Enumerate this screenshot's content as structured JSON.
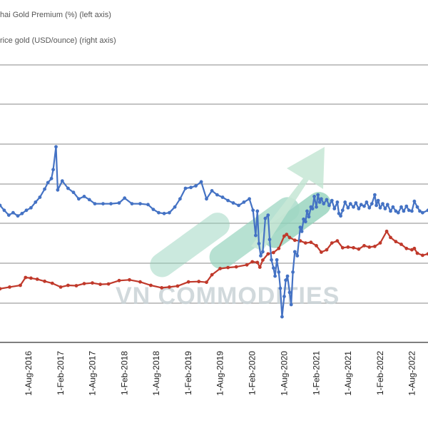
{
  "chart_data": {
    "type": "line",
    "title": "",
    "xlabel": "",
    "ylabel": "",
    "legend": [
      {
        "label": "hai Gold Premium (%) (left axis)",
        "color": "#4472c4",
        "marker": "line"
      },
      {
        "label": "rice gold (USD/ounce) (right axis)",
        "color": "#c0392b",
        "marker": "line"
      }
    ],
    "legend_position": "top-left",
    "grid": true,
    "x_ticks": [
      "1-Aug-2016",
      "1-Feb-2017",
      "1-Aug-2017",
      "1-Feb-2018",
      "1-Aug-2018",
      "1-Feb-2019",
      "1-Aug-2019",
      "1-Feb-2020",
      "1-Aug-2020",
      "1-Feb-2021",
      "1-Aug-2021",
      "1-Feb-2022",
      "1-Aug-2022"
    ],
    "x_range": [
      "2016-02-20",
      "2022-11-01"
    ],
    "series": [
      {
        "name": "hai Gold Premium (%) (left axis)",
        "color": "#4472c4",
        "axis": "left",
        "points": [
          [
            "2016-02-20",
            2.2
          ],
          [
            "2016-03-15",
            1.6
          ],
          [
            "2016-04-10",
            1.0
          ],
          [
            "2016-05-05",
            1.3
          ],
          [
            "2016-06-01",
            0.9
          ],
          [
            "2016-06-25",
            1.2
          ],
          [
            "2016-07-20",
            1.6
          ],
          [
            "2016-08-15",
            1.9
          ],
          [
            "2016-09-10",
            2.6
          ],
          [
            "2016-10-05",
            3.2
          ],
          [
            "2016-11-01",
            4.2
          ],
          [
            "2016-11-20",
            5.0
          ],
          [
            "2016-12-10",
            5.5
          ],
          [
            "2016-12-20",
            6.6
          ],
          [
            "2017-01-05",
            9.4
          ],
          [
            "2017-01-15",
            4.1
          ],
          [
            "2017-02-10",
            5.2
          ],
          [
            "2017-03-15",
            4.3
          ],
          [
            "2017-04-15",
            3.8
          ],
          [
            "2017-05-15",
            3.0
          ],
          [
            "2017-06-15",
            3.3
          ],
          [
            "2017-07-15",
            2.9
          ],
          [
            "2017-08-15",
            2.4
          ],
          [
            "2017-10-01",
            2.4
          ],
          [
            "2017-11-15",
            2.4
          ],
          [
            "2018-01-01",
            2.5
          ],
          [
            "2018-02-01",
            3.1
          ],
          [
            "2018-03-15",
            2.4
          ],
          [
            "2018-05-01",
            2.4
          ],
          [
            "2018-06-15",
            2.3
          ],
          [
            "2018-07-15",
            1.7
          ],
          [
            "2018-08-15",
            1.3
          ],
          [
            "2018-09-15",
            1.2
          ],
          [
            "2018-10-15",
            1.3
          ],
          [
            "2018-11-15",
            2.0
          ],
          [
            "2018-12-15",
            3.0
          ],
          [
            "2019-01-15",
            4.3
          ],
          [
            "2019-02-15",
            4.4
          ],
          [
            "2019-03-15",
            4.6
          ],
          [
            "2019-04-15",
            5.1
          ],
          [
            "2019-05-15",
            3.0
          ],
          [
            "2019-06-15",
            4.0
          ],
          [
            "2019-07-15",
            3.5
          ],
          [
            "2019-08-15",
            3.2
          ],
          [
            "2019-09-15",
            2.8
          ],
          [
            "2019-10-15",
            2.5
          ],
          [
            "2019-11-15",
            2.2
          ],
          [
            "2019-12-15",
            2.6
          ],
          [
            "2020-01-15",
            3.0
          ],
          [
            "2020-02-05",
            1.6
          ],
          [
            "2020-02-20",
            -1.5
          ],
          [
            "2020-03-01",
            1.5
          ],
          [
            "2020-03-10",
            -2.5
          ],
          [
            "2020-03-20",
            -4.0
          ],
          [
            "2020-04-01",
            -3.5
          ],
          [
            "2020-04-15",
            0.6
          ],
          [
            "2020-05-01",
            1.0
          ],
          [
            "2020-05-10",
            -2.0
          ],
          [
            "2020-05-20",
            -4.5
          ],
          [
            "2020-06-01",
            -5.5
          ],
          [
            "2020-06-10",
            -6.5
          ],
          [
            "2020-06-20",
            -4.5
          ],
          [
            "2020-07-01",
            -6.0
          ],
          [
            "2020-07-10",
            -8.0
          ],
          [
            "2020-07-20",
            -11.5
          ],
          [
            "2020-08-01",
            -9.0
          ],
          [
            "2020-08-10",
            -7.0
          ],
          [
            "2020-08-20",
            -6.5
          ],
          [
            "2020-09-01",
            -8.5
          ],
          [
            "2020-09-10",
            -10.0
          ],
          [
            "2020-09-20",
            -6.0
          ],
          [
            "2020-10-01",
            -3.5
          ],
          [
            "2020-10-15",
            -4.0
          ],
          [
            "2020-11-01",
            -0.5
          ],
          [
            "2020-11-10",
            -1.0
          ],
          [
            "2020-11-20",
            0.5
          ],
          [
            "2020-12-01",
            0.2
          ],
          [
            "2020-12-10",
            1.5
          ],
          [
            "2020-12-20",
            0.8
          ],
          [
            "2021-01-01",
            2.0
          ],
          [
            "2021-01-10",
            1.8
          ],
          [
            "2021-01-20",
            3.3
          ],
          [
            "2021-02-01",
            2.0
          ],
          [
            "2021-02-10",
            3.5
          ],
          [
            "2021-02-20",
            2.6
          ],
          [
            "2021-03-01",
            3.0
          ],
          [
            "2021-03-15",
            2.4
          ],
          [
            "2021-04-01",
            2.9
          ],
          [
            "2021-04-15",
            2.2
          ],
          [
            "2021-05-01",
            2.8
          ],
          [
            "2021-05-15",
            1.8
          ],
          [
            "2021-06-01",
            2.6
          ],
          [
            "2021-06-10",
            1.2
          ],
          [
            "2021-06-20",
            0.9
          ],
          [
            "2021-07-01",
            1.6
          ],
          [
            "2021-07-15",
            2.6
          ],
          [
            "2021-08-01",
            1.9
          ],
          [
            "2021-08-15",
            2.4
          ],
          [
            "2021-09-01",
            2.0
          ],
          [
            "2021-09-15",
            2.5
          ],
          [
            "2021-10-01",
            1.8
          ],
          [
            "2021-10-15",
            2.3
          ],
          [
            "2021-11-01",
            2.1
          ],
          [
            "2021-11-15",
            2.6
          ],
          [
            "2021-12-01",
            1.9
          ],
          [
            "2021-12-15",
            2.4
          ],
          [
            "2022-01-01",
            3.5
          ],
          [
            "2022-01-10",
            2.2
          ],
          [
            "2022-01-20",
            2.8
          ],
          [
            "2022-02-01",
            1.9
          ],
          [
            "2022-02-15",
            2.4
          ],
          [
            "2022-03-01",
            1.8
          ],
          [
            "2022-03-15",
            2.3
          ],
          [
            "2022-04-01",
            1.5
          ],
          [
            "2022-04-15",
            2.0
          ],
          [
            "2022-05-01",
            1.5
          ],
          [
            "2022-05-15",
            1.3
          ],
          [
            "2022-06-01",
            2.0
          ],
          [
            "2022-06-15",
            1.5
          ],
          [
            "2022-07-01",
            2.1
          ],
          [
            "2022-07-15",
            1.6
          ],
          [
            "2022-08-01",
            1.5
          ],
          [
            "2022-08-15",
            2.7
          ],
          [
            "2022-09-01",
            2.0
          ],
          [
            "2022-09-15",
            1.5
          ],
          [
            "2022-10-01",
            1.3
          ],
          [
            "2022-11-01",
            1.6
          ]
        ]
      },
      {
        "name": "rice gold (USD/ounce) (right axis)",
        "color": "#c0392b",
        "axis": "right",
        "points": [
          [
            "2016-02-20",
            1190
          ],
          [
            "2016-04-15",
            1215
          ],
          [
            "2016-06-15",
            1240
          ],
          [
            "2016-07-15",
            1355
          ],
          [
            "2016-08-15",
            1345
          ],
          [
            "2016-09-20",
            1330
          ],
          [
            "2016-11-01",
            1300
          ],
          [
            "2016-12-15",
            1270
          ],
          [
            "2017-02-01",
            1215
          ],
          [
            "2017-03-15",
            1240
          ],
          [
            "2017-05-01",
            1235
          ],
          [
            "2017-06-15",
            1265
          ],
          [
            "2017-08-01",
            1275
          ],
          [
            "2017-09-15",
            1255
          ],
          [
            "2017-11-01",
            1260
          ],
          [
            "2018-01-01",
            1310
          ],
          [
            "2018-03-01",
            1320
          ],
          [
            "2018-05-01",
            1290
          ],
          [
            "2018-07-01",
            1240
          ],
          [
            "2018-09-01",
            1205
          ],
          [
            "2018-10-15",
            1215
          ],
          [
            "2018-12-01",
            1230
          ],
          [
            "2019-02-01",
            1290
          ],
          [
            "2019-04-01",
            1295
          ],
          [
            "2019-05-15",
            1285
          ],
          [
            "2019-06-15",
            1395
          ],
          [
            "2019-08-01",
            1485
          ],
          [
            "2019-09-15",
            1500
          ],
          [
            "2019-11-01",
            1510
          ],
          [
            "2020-01-01",
            1540
          ],
          [
            "2020-02-01",
            1585
          ],
          [
            "2020-03-01",
            1575
          ],
          [
            "2020-03-15",
            1505
          ],
          [
            "2020-04-01",
            1610
          ],
          [
            "2020-05-01",
            1700
          ],
          [
            "2020-06-01",
            1720
          ],
          [
            "2020-07-01",
            1780
          ],
          [
            "2020-08-01",
            1960
          ],
          [
            "2020-08-15",
            1985
          ],
          [
            "2020-09-01",
            1940
          ],
          [
            "2020-10-01",
            1900
          ],
          [
            "2020-11-01",
            1890
          ],
          [
            "2020-12-01",
            1860
          ],
          [
            "2021-01-01",
            1870
          ],
          [
            "2021-02-01",
            1820
          ],
          [
            "2021-03-01",
            1725
          ],
          [
            "2021-04-01",
            1760
          ],
          [
            "2021-05-01",
            1860
          ],
          [
            "2021-06-01",
            1890
          ],
          [
            "2021-07-01",
            1790
          ],
          [
            "2021-08-01",
            1800
          ],
          [
            "2021-09-01",
            1790
          ],
          [
            "2021-10-01",
            1770
          ],
          [
            "2021-11-01",
            1820
          ],
          [
            "2021-12-01",
            1800
          ],
          [
            "2022-01-01",
            1810
          ],
          [
            "2022-02-01",
            1860
          ],
          [
            "2022-03-10",
            2030
          ],
          [
            "2022-04-01",
            1940
          ],
          [
            "2022-05-01",
            1880
          ],
          [
            "2022-06-01",
            1840
          ],
          [
            "2022-07-01",
            1780
          ],
          [
            "2022-08-01",
            1760
          ],
          [
            "2022-08-15",
            1780
          ],
          [
            "2022-09-01",
            1710
          ],
          [
            "2022-10-01",
            1680
          ],
          [
            "2022-11-01",
            1700
          ]
        ]
      }
    ]
  },
  "watermark": {
    "text": "VN COMMODITIES",
    "color": "#c9d3d6",
    "arrow_color": "#bfe3cf",
    "shape_color": "#8fd0b8"
  }
}
